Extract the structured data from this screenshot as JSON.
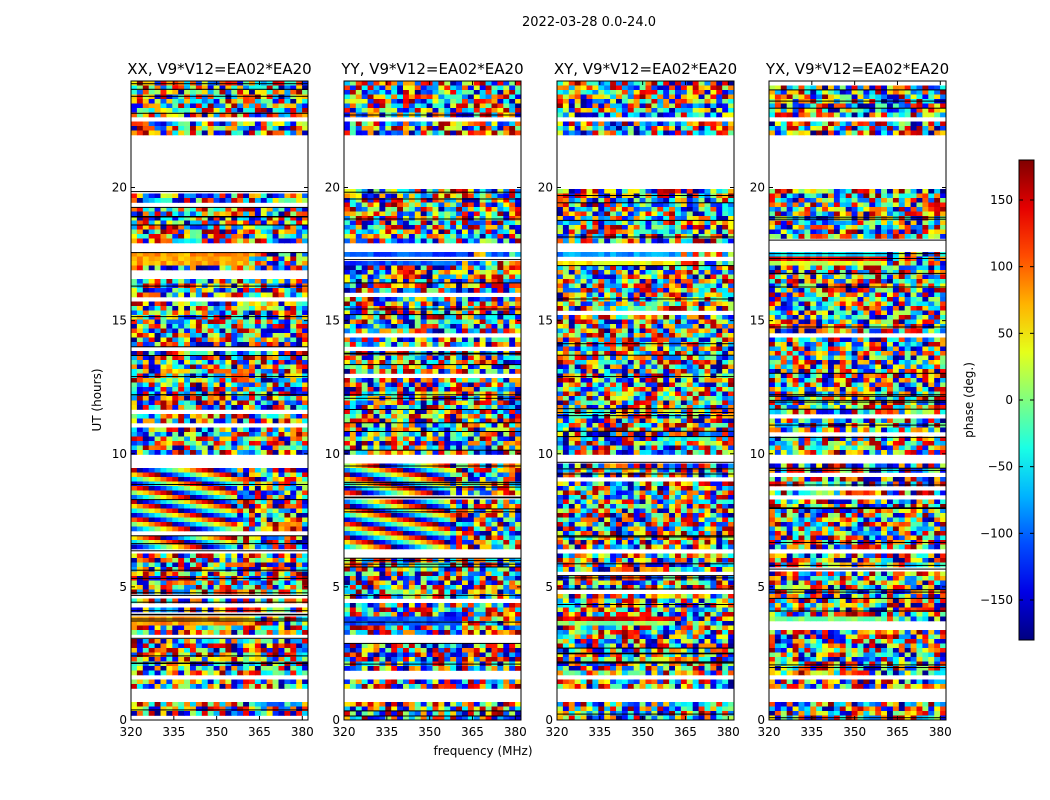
{
  "figure": {
    "suptitle": "2022-03-28 0.0-24.0"
  },
  "chart_data": {
    "type": "heatmap",
    "ylabel": "UT (hours)",
    "xlabel": "frequency (MHz)",
    "xlim": [
      320,
      382
    ],
    "ylim": [
      0,
      24
    ],
    "x_ticks": [
      320,
      335,
      350,
      365,
      380
    ],
    "y_ticks": [
      0,
      5,
      10,
      15,
      20
    ],
    "panels": [
      {
        "title": "XX, V9*V12=EA02*EA20",
        "pol": "XX"
      },
      {
        "title": "YY, V9*V12=EA02*EA20",
        "pol": "YY"
      },
      {
        "title": "XY, V9*V12=EA02*EA20",
        "pol": "XY"
      },
      {
        "title": "YX, V9*V12=EA02*EA20",
        "pol": "YX"
      }
    ],
    "flagged_ut_ranges": [
      [
        0.45,
        0.55
      ],
      [
        0.7,
        1.2
      ],
      [
        1.55,
        1.65
      ],
      [
        2.0,
        2.08
      ],
      [
        3.5,
        3.62
      ],
      [
        6.2,
        6.35
      ],
      [
        9.7,
        9.95
      ],
      [
        13.1,
        13.2
      ],
      [
        17.6,
        17.95
      ],
      [
        19.9,
        22.0
      ],
      [
        22.5,
        22.7
      ],
      [
        23.3,
        23.35
      ]
    ],
    "colorbar": {
      "label": "phase (deg.)",
      "range": [
        -180,
        180
      ],
      "ticks": [
        -150,
        -100,
        -50,
        0,
        50,
        100,
        150
      ],
      "tick_labels": [
        "−150",
        "−100",
        "−50",
        "0",
        "50",
        "100",
        "150"
      ],
      "colormap": "jet"
    }
  }
}
